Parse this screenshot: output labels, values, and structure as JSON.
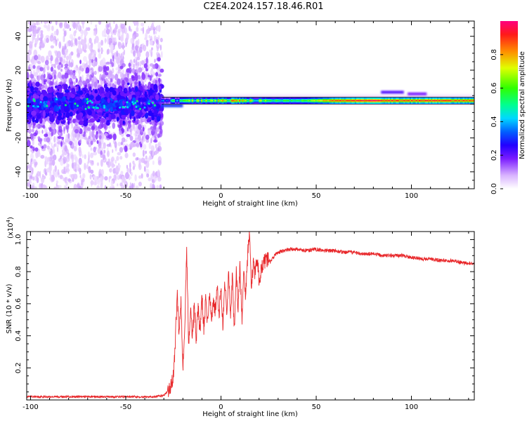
{
  "title": "C2E4.2024.157.18.46.R01",
  "chart_data": [
    {
      "type": "heatmap",
      "xlabel": "Height of straight line (km)",
      "ylabel": "Frequency (Hz)",
      "xlim": [
        -102,
        133
      ],
      "ylim": [
        -50,
        49
      ],
      "x_ticks": [
        -100,
        -50,
        0,
        50,
        100
      ],
      "y_ticks": [
        -40,
        -20,
        0,
        20,
        40
      ],
      "colorbar": {
        "label": "Normalized spectral amplitude",
        "range": [
          0,
          1
        ],
        "ticks": [
          0,
          0.2,
          0.4,
          0.6,
          0.8
        ]
      },
      "features": {
        "scatter_region_x": [
          -102,
          -31
        ],
        "scatter_center_freq": 0,
        "line_start_x": -31,
        "line_freq": 2,
        "line_amplitude_profile": [
          [
            -31,
            0.35
          ],
          [
            -25,
            0.45
          ],
          [
            -20,
            0.55
          ],
          [
            -10,
            0.6
          ],
          [
            0,
            0.65
          ],
          [
            10,
            0.8
          ],
          [
            20,
            0.55
          ],
          [
            40,
            0.55
          ],
          [
            60,
            0.85
          ],
          [
            80,
            0.95
          ],
          [
            95,
            0.85
          ],
          [
            110,
            0.9
          ],
          [
            133,
            0.85
          ]
        ]
      }
    },
    {
      "type": "line",
      "xlabel": "Height of straight line (km)",
      "ylabel": "SNR (10 * v/v)",
      "y_multiplier": "(x10",
      "y_multiplier_exp": "4",
      "y_multiplier_close": ")",
      "xlim": [
        -102,
        133
      ],
      "ylim": [
        0,
        1.05
      ],
      "x_ticks": [
        -100,
        -50,
        0,
        50,
        100
      ],
      "y_ticks": [
        0.2,
        0.4,
        0.6,
        0.8,
        1.0
      ],
      "color": "#e8282b",
      "series": [
        {
          "x": [
            -102,
            -90,
            -75,
            -60,
            -45,
            -35,
            -30,
            -27,
            -25,
            -24,
            -23,
            -22,
            -21,
            -20,
            -19,
            -18,
            -17,
            -16,
            -15,
            -14,
            -13,
            -12,
            -11,
            -10,
            -9,
            -8,
            -7,
            -6,
            -5,
            -4,
            -3,
            -2,
            -1,
            0,
            1,
            2,
            3,
            4,
            5,
            6,
            7,
            8,
            9,
            10,
            11,
            12,
            13,
            14,
            15,
            16,
            17,
            18,
            19,
            20,
            22,
            24,
            26,
            28,
            30,
            33,
            36,
            40,
            45,
            50,
            55,
            60,
            65,
            70,
            75,
            80,
            85,
            90,
            95,
            100,
            105,
            110,
            115,
            120,
            125,
            130,
            133
          ],
          "y": [
            0.02,
            0.02,
            0.02,
            0.02,
            0.02,
            0.02,
            0.03,
            0.06,
            0.15,
            0.35,
            0.68,
            0.4,
            0.65,
            0.2,
            0.45,
            0.95,
            0.35,
            0.55,
            0.4,
            0.6,
            0.38,
            0.58,
            0.42,
            0.64,
            0.45,
            0.62,
            0.48,
            0.66,
            0.5,
            0.63,
            0.55,
            0.7,
            0.52,
            0.72,
            0.45,
            0.75,
            0.55,
            0.8,
            0.5,
            0.78,
            0.4,
            0.82,
            0.55,
            0.85,
            0.5,
            0.78,
            0.65,
            0.9,
            1.04,
            0.7,
            0.85,
            0.78,
            0.88,
            0.75,
            0.85,
            0.88,
            0.86,
            0.9,
            0.92,
            0.93,
            0.94,
            0.94,
            0.93,
            0.94,
            0.93,
            0.93,
            0.92,
            0.92,
            0.91,
            0.91,
            0.9,
            0.9,
            0.9,
            0.89,
            0.88,
            0.88,
            0.87,
            0.87,
            0.86,
            0.85,
            0.85
          ]
        }
      ]
    }
  ]
}
